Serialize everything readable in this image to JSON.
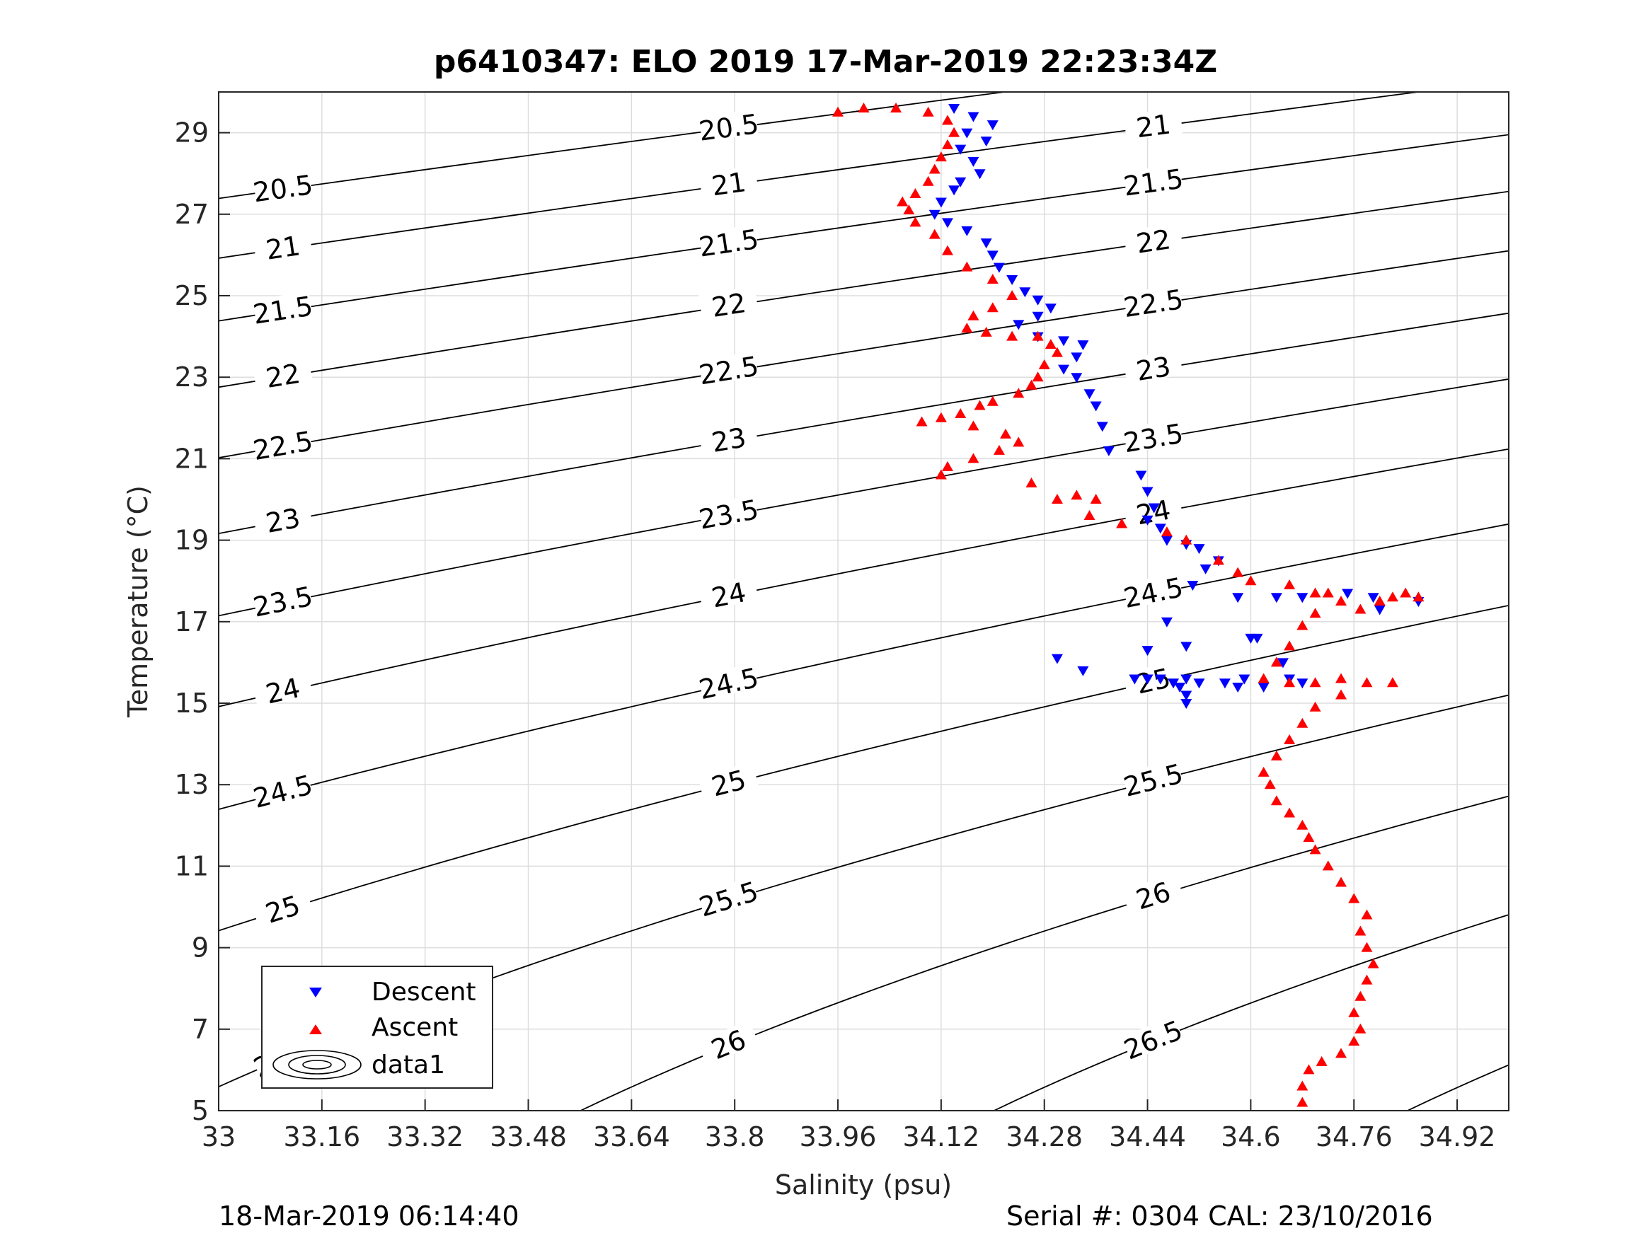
{
  "chart_data": {
    "type": "scatter",
    "title": "p6410347: ELO 2019 17-Mar-2019 22:23:34Z",
    "xlabel": "Salinity (psu)",
    "ylabel": "Temperature (°C)",
    "xlim": [
      33,
      35.0
    ],
    "ylim": [
      5,
      30
    ],
    "x_ticks": [
      "33",
      "33.16",
      "33.32",
      "33.48",
      "33.64",
      "33.8",
      "33.96",
      "34.12",
      "34.28",
      "34.44",
      "34.6",
      "34.76",
      "34.92"
    ],
    "y_ticks": [
      "5",
      "7",
      "9",
      "11",
      "13",
      "15",
      "17",
      "19",
      "21",
      "23",
      "25",
      "27",
      "29"
    ],
    "grid": true,
    "legend": {
      "position": "bottom-left",
      "entries": [
        "Descent",
        "Ascent",
        "data1"
      ]
    },
    "colors": {
      "descent": "#0000ff",
      "ascent": "#ff0000",
      "contour": "#000000",
      "grid": "#dddddd"
    },
    "contour_levels": [
      "20.5",
      "21",
      "21.5",
      "22",
      "22.5",
      "23",
      "23.5",
      "24",
      "24.5",
      "25",
      "25.5",
      "26",
      "26.5",
      "27"
    ],
    "series": [
      {
        "name": "Descent",
        "marker": "triangle-down",
        "points": [
          [
            34.14,
            29.6
          ],
          [
            34.17,
            29.4
          ],
          [
            34.2,
            29.2
          ],
          [
            34.16,
            29.0
          ],
          [
            34.19,
            28.8
          ],
          [
            34.15,
            28.6
          ],
          [
            34.17,
            28.3
          ],
          [
            34.18,
            28.0
          ],
          [
            34.15,
            27.8
          ],
          [
            34.14,
            27.6
          ],
          [
            34.12,
            27.3
          ],
          [
            34.11,
            27.0
          ],
          [
            34.13,
            26.8
          ],
          [
            34.16,
            26.6
          ],
          [
            34.19,
            26.3
          ],
          [
            34.2,
            26.0
          ],
          [
            34.21,
            25.7
          ],
          [
            34.23,
            25.4
          ],
          [
            34.25,
            25.1
          ],
          [
            34.27,
            24.9
          ],
          [
            34.29,
            24.7
          ],
          [
            34.27,
            24.5
          ],
          [
            34.24,
            24.3
          ],
          [
            34.27,
            24.0
          ],
          [
            34.31,
            23.9
          ],
          [
            34.34,
            23.8
          ],
          [
            34.33,
            23.5
          ],
          [
            34.31,
            23.2
          ],
          [
            34.33,
            23.0
          ],
          [
            34.35,
            22.6
          ],
          [
            34.36,
            22.3
          ],
          [
            34.37,
            21.8
          ],
          [
            34.38,
            21.2
          ],
          [
            34.43,
            20.6
          ],
          [
            34.44,
            20.2
          ],
          [
            34.45,
            19.8
          ],
          [
            34.44,
            19.5
          ],
          [
            34.46,
            19.3
          ],
          [
            34.47,
            19.0
          ],
          [
            34.5,
            18.9
          ],
          [
            34.52,
            18.8
          ],
          [
            34.55,
            18.5
          ],
          [
            34.53,
            18.3
          ],
          [
            34.51,
            17.9
          ],
          [
            34.58,
            17.6
          ],
          [
            34.64,
            17.6
          ],
          [
            34.68,
            17.6
          ],
          [
            34.75,
            17.7
          ],
          [
            34.79,
            17.6
          ],
          [
            34.8,
            17.3
          ],
          [
            34.86,
            17.5
          ],
          [
            34.47,
            17.0
          ],
          [
            34.5,
            16.4
          ],
          [
            34.6,
            16.6
          ],
          [
            34.61,
            16.6
          ],
          [
            34.44,
            16.3
          ],
          [
            34.65,
            16.0
          ],
          [
            34.3,
            16.1
          ],
          [
            34.34,
            15.8
          ],
          [
            34.42,
            15.6
          ],
          [
            34.44,
            15.6
          ],
          [
            34.46,
            15.6
          ],
          [
            34.48,
            15.5
          ],
          [
            34.5,
            15.6
          ],
          [
            34.52,
            15.5
          ],
          [
            34.49,
            15.4
          ],
          [
            34.5,
            15.2
          ],
          [
            34.5,
            15.0
          ],
          [
            34.56,
            15.5
          ],
          [
            34.59,
            15.6
          ],
          [
            34.62,
            15.4
          ],
          [
            34.66,
            15.6
          ],
          [
            34.68,
            15.5
          ],
          [
            34.58,
            15.4
          ]
        ]
      },
      {
        "name": "Ascent",
        "marker": "triangle-up",
        "points": [
          [
            33.96,
            29.5
          ],
          [
            34.0,
            29.6
          ],
          [
            34.05,
            29.6
          ],
          [
            34.1,
            29.5
          ],
          [
            34.13,
            29.3
          ],
          [
            34.14,
            29.0
          ],
          [
            34.13,
            28.7
          ],
          [
            34.12,
            28.4
          ],
          [
            34.11,
            28.1
          ],
          [
            34.1,
            27.8
          ],
          [
            34.08,
            27.5
          ],
          [
            34.06,
            27.3
          ],
          [
            34.07,
            27.1
          ],
          [
            34.08,
            26.8
          ],
          [
            34.11,
            26.5
          ],
          [
            34.13,
            26.1
          ],
          [
            34.16,
            25.7
          ],
          [
            34.2,
            25.4
          ],
          [
            34.23,
            25.0
          ],
          [
            34.2,
            24.7
          ],
          [
            34.17,
            24.5
          ],
          [
            34.16,
            24.2
          ],
          [
            34.19,
            24.1
          ],
          [
            34.23,
            24.0
          ],
          [
            34.27,
            24.0
          ],
          [
            34.29,
            23.8
          ],
          [
            34.3,
            23.6
          ],
          [
            34.28,
            23.3
          ],
          [
            34.27,
            23.0
          ],
          [
            34.26,
            22.8
          ],
          [
            34.24,
            22.6
          ],
          [
            34.2,
            22.4
          ],
          [
            34.18,
            22.3
          ],
          [
            34.15,
            22.1
          ],
          [
            34.12,
            22.0
          ],
          [
            34.09,
            21.9
          ],
          [
            34.17,
            21.8
          ],
          [
            34.22,
            21.6
          ],
          [
            34.24,
            21.4
          ],
          [
            34.21,
            21.2
          ],
          [
            34.17,
            21.0
          ],
          [
            34.13,
            20.8
          ],
          [
            34.12,
            20.6
          ],
          [
            34.26,
            20.4
          ],
          [
            34.3,
            20.0
          ],
          [
            34.33,
            20.1
          ],
          [
            34.36,
            20.0
          ],
          [
            34.35,
            19.6
          ],
          [
            34.4,
            19.4
          ],
          [
            34.47,
            19.2
          ],
          [
            34.5,
            19.0
          ],
          [
            34.55,
            18.5
          ],
          [
            34.58,
            18.2
          ],
          [
            34.6,
            18.0
          ],
          [
            34.66,
            17.9
          ],
          [
            34.7,
            17.7
          ],
          [
            34.72,
            17.7
          ],
          [
            34.74,
            17.5
          ],
          [
            34.77,
            17.3
          ],
          [
            34.8,
            17.5
          ],
          [
            34.82,
            17.6
          ],
          [
            34.84,
            17.7
          ],
          [
            34.86,
            17.6
          ],
          [
            34.7,
            17.2
          ],
          [
            34.68,
            16.9
          ],
          [
            34.66,
            16.4
          ],
          [
            34.64,
            16.0
          ],
          [
            34.62,
            15.6
          ],
          [
            34.66,
            15.5
          ],
          [
            34.7,
            15.5
          ],
          [
            34.74,
            15.6
          ],
          [
            34.78,
            15.5
          ],
          [
            34.82,
            15.5
          ],
          [
            34.74,
            15.2
          ],
          [
            34.7,
            14.9
          ],
          [
            34.68,
            14.5
          ],
          [
            34.66,
            14.1
          ],
          [
            34.64,
            13.7
          ],
          [
            34.62,
            13.3
          ],
          [
            34.63,
            13.0
          ],
          [
            34.64,
            12.6
          ],
          [
            34.66,
            12.3
          ],
          [
            34.68,
            12.0
          ],
          [
            34.69,
            11.7
          ],
          [
            34.7,
            11.4
          ],
          [
            34.72,
            11.0
          ],
          [
            34.74,
            10.6
          ],
          [
            34.76,
            10.2
          ],
          [
            34.78,
            9.8
          ],
          [
            34.77,
            9.4
          ],
          [
            34.78,
            9.0
          ],
          [
            34.79,
            8.6
          ],
          [
            34.78,
            8.2
          ],
          [
            34.77,
            7.8
          ],
          [
            34.76,
            7.4
          ],
          [
            34.77,
            7.0
          ],
          [
            34.76,
            6.7
          ],
          [
            34.74,
            6.4
          ],
          [
            34.71,
            6.2
          ],
          [
            34.69,
            6.0
          ],
          [
            34.68,
            5.6
          ],
          [
            34.68,
            5.2
          ]
        ]
      }
    ]
  },
  "footer": {
    "left": "18-Mar-2019 06:14:40",
    "right": "Serial #: 0304  CAL: 23/10/2016"
  }
}
